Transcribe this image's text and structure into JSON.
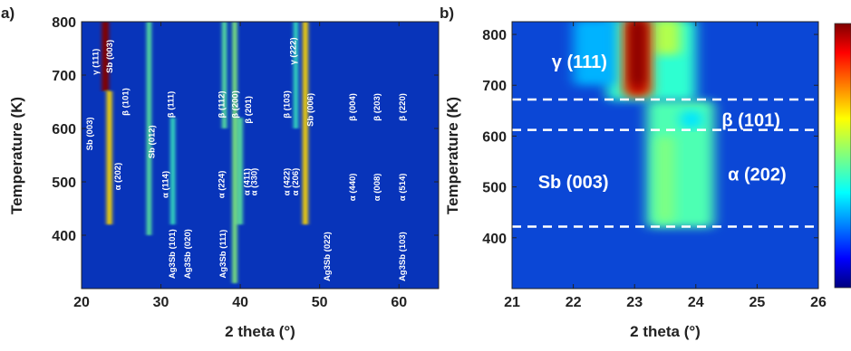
{
  "figure": {
    "panel_a_label": "a)",
    "panel_b_label": "b)"
  },
  "chart_data": [
    {
      "panel": "a)",
      "type": "heatmap",
      "xlabel": "2 theta (°)",
      "ylabel": "Temperature (K)",
      "xlim": [
        20,
        65
      ],
      "ylim": [
        300,
        800
      ],
      "x_ticks": [
        20,
        30,
        40,
        50,
        60
      ],
      "y_ticks": [
        400,
        500,
        600,
        700,
        800
      ],
      "colormap": "jet",
      "bands": [
        {
          "two_theta": 23.0,
          "t_min": 670,
          "t_max": 800,
          "intensity": 1.0
        },
        {
          "two_theta": 23.5,
          "t_min": 420,
          "t_max": 670,
          "intensity": 0.55
        },
        {
          "two_theta": 28.5,
          "t_min": 400,
          "t_max": 800,
          "intensity": 0.3
        },
        {
          "two_theta": 31.5,
          "t_min": 420,
          "t_max": 620,
          "intensity": 0.25
        },
        {
          "two_theta": 38.0,
          "t_min": 600,
          "t_max": 800,
          "intensity": 0.3
        },
        {
          "two_theta": 39.3,
          "t_min": 310,
          "t_max": 800,
          "intensity": 0.35
        },
        {
          "two_theta": 40.0,
          "t_min": 420,
          "t_max": 620,
          "intensity": 0.3
        },
        {
          "two_theta": 48.2,
          "t_min": 420,
          "t_max": 800,
          "intensity": 0.55
        },
        {
          "two_theta": 47.0,
          "t_min": 600,
          "t_max": 800,
          "intensity": 0.25
        }
      ],
      "annotations": [
        {
          "text": "γ (111)",
          "x": 21.8,
          "y": 725
        },
        {
          "text": "Sb (003)",
          "x": 23.6,
          "y": 735
        },
        {
          "text": "β (101)",
          "x": 25.6,
          "y": 650
        },
        {
          "text": "β (111)",
          "x": 31.3,
          "y": 645
        },
        {
          "text": "β (112)",
          "x": 37.7,
          "y": 645
        },
        {
          "text": "β (200)",
          "x": 39.4,
          "y": 645
        },
        {
          "text": "β (201)",
          "x": 41.1,
          "y": 635
        },
        {
          "text": "β (103)",
          "x": 45.9,
          "y": 645
        },
        {
          "text": "γ (222)",
          "x": 46.7,
          "y": 745
        },
        {
          "text": "Sb (006)",
          "x": 48.9,
          "y": 635
        },
        {
          "text": "β (004)",
          "x": 54.2,
          "y": 640
        },
        {
          "text": "β (203)",
          "x": 57.3,
          "y": 640
        },
        {
          "text": "β (220)",
          "x": 60.5,
          "y": 640
        },
        {
          "text": "Sb (003)",
          "x": 21.1,
          "y": 590
        },
        {
          "text": "α (202)",
          "x": 24.6,
          "y": 510
        },
        {
          "text": "Sb (012)",
          "x": 28.9,
          "y": 575
        },
        {
          "text": "α (114)",
          "x": 30.6,
          "y": 495
        },
        {
          "text": "α (224)",
          "x": 37.7,
          "y": 495
        },
        {
          "text": "α (411)",
          "x": 40.9,
          "y": 500
        },
        {
          "text": "α (330)",
          "x": 41.8,
          "y": 500
        },
        {
          "text": "α (422)",
          "x": 45.9,
          "y": 500
        },
        {
          "text": "α (206)",
          "x": 47.0,
          "y": 500
        },
        {
          "text": "α (440)",
          "x": 54.2,
          "y": 490
        },
        {
          "text": "α (008)",
          "x": 57.3,
          "y": 490
        },
        {
          "text": "α (514)",
          "x": 60.5,
          "y": 490
        },
        {
          "text": "Ag3Sb (101)",
          "x": 31.5,
          "y": 365
        },
        {
          "text": "Ag3Sb (020)",
          "x": 33.4,
          "y": 365
        },
        {
          "text": "Ag3Sb (111)",
          "x": 37.9,
          "y": 365
        },
        {
          "text": "Ag3Sb (022)",
          "x": 51.0,
          "y": 360
        },
        {
          "text": "Ag3Sb (103)",
          "x": 60.5,
          "y": 360
        }
      ]
    },
    {
      "panel": "b)",
      "type": "heatmap",
      "xlabel": "2 theta (°)",
      "ylabel": "Temperature (K)",
      "xlim": [
        21,
        26
      ],
      "ylim": [
        300,
        825
      ],
      "x_ticks": [
        21,
        22,
        23,
        24,
        25,
        26
      ],
      "y_ticks": [
        400,
        500,
        600,
        700,
        800
      ],
      "colormap": "jet",
      "colorbar": true,
      "dashed_lines_temperature": [
        672,
        612,
        422
      ],
      "annotations": [
        {
          "text": "γ (111)",
          "x": 22.1,
          "y": 745
        },
        {
          "text": "β (101)",
          "x": 24.9,
          "y": 630
        },
        {
          "text": "Sb (003)",
          "x": 22.0,
          "y": 508
        },
        {
          "text": "α (202)",
          "x": 25.0,
          "y": 523
        }
      ]
    }
  ]
}
